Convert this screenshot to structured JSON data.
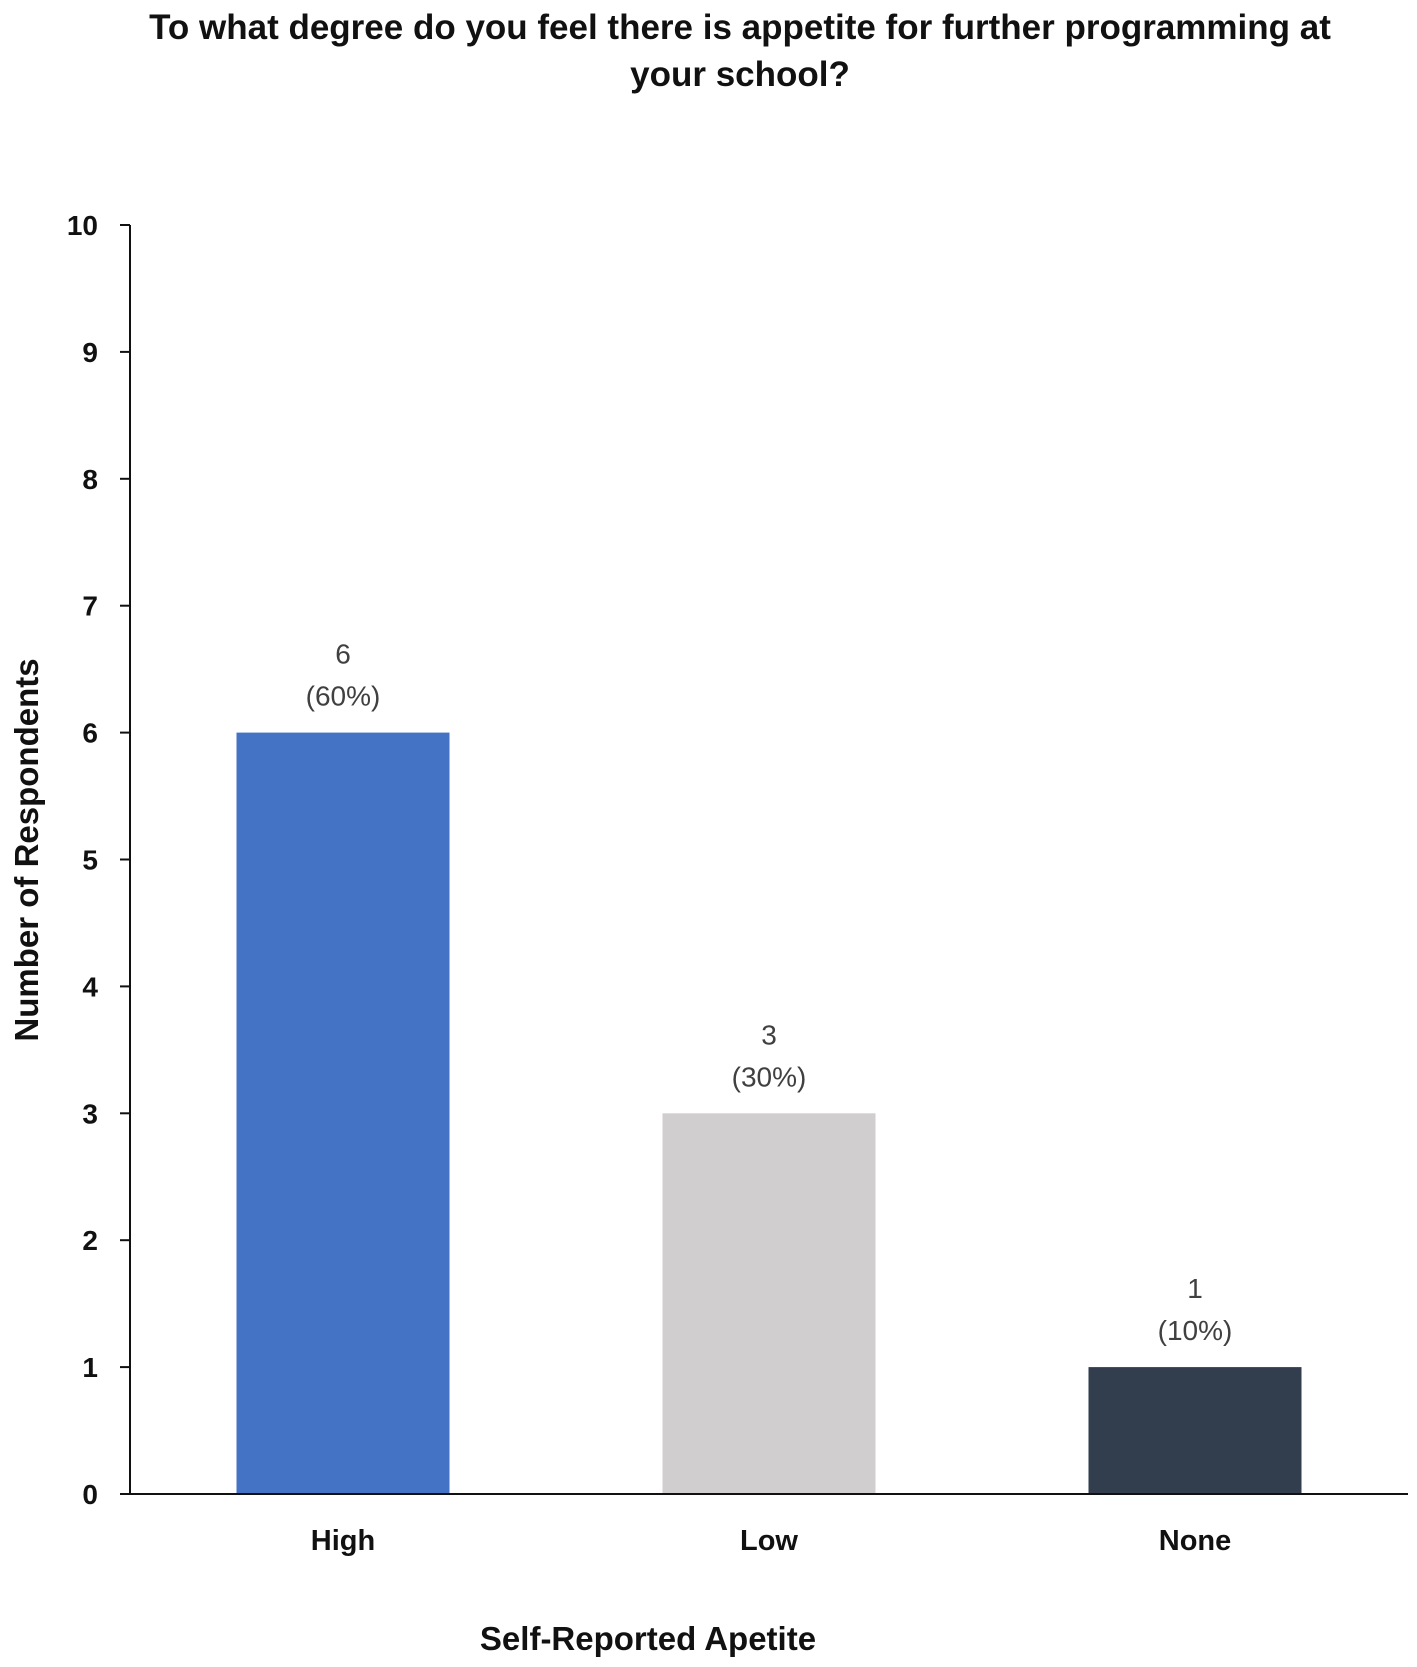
{
  "chart_data": {
    "type": "bar",
    "title": "To what degree do you feel there is appetite for further programming at your school?",
    "xlabel": "Self-Reported Apetite",
    "ylabel": "Number of Respondents",
    "categories": [
      "High",
      "Low",
      "None"
    ],
    "values": [
      6,
      3,
      1
    ],
    "data_labels": [
      {
        "count": "6",
        "percent": "(60%)"
      },
      {
        "count": "3",
        "percent": "(30%)"
      },
      {
        "count": "1",
        "percent": "(10%)"
      }
    ],
    "colors": [
      "#4472C4",
      "#D0CECE",
      "#323D4D"
    ],
    "ylim": [
      0,
      10
    ],
    "yticks": [
      "0",
      "1",
      "2",
      "3",
      "4",
      "5",
      "6",
      "7",
      "8",
      "9",
      "10"
    ],
    "grid": false,
    "legend": "none"
  }
}
